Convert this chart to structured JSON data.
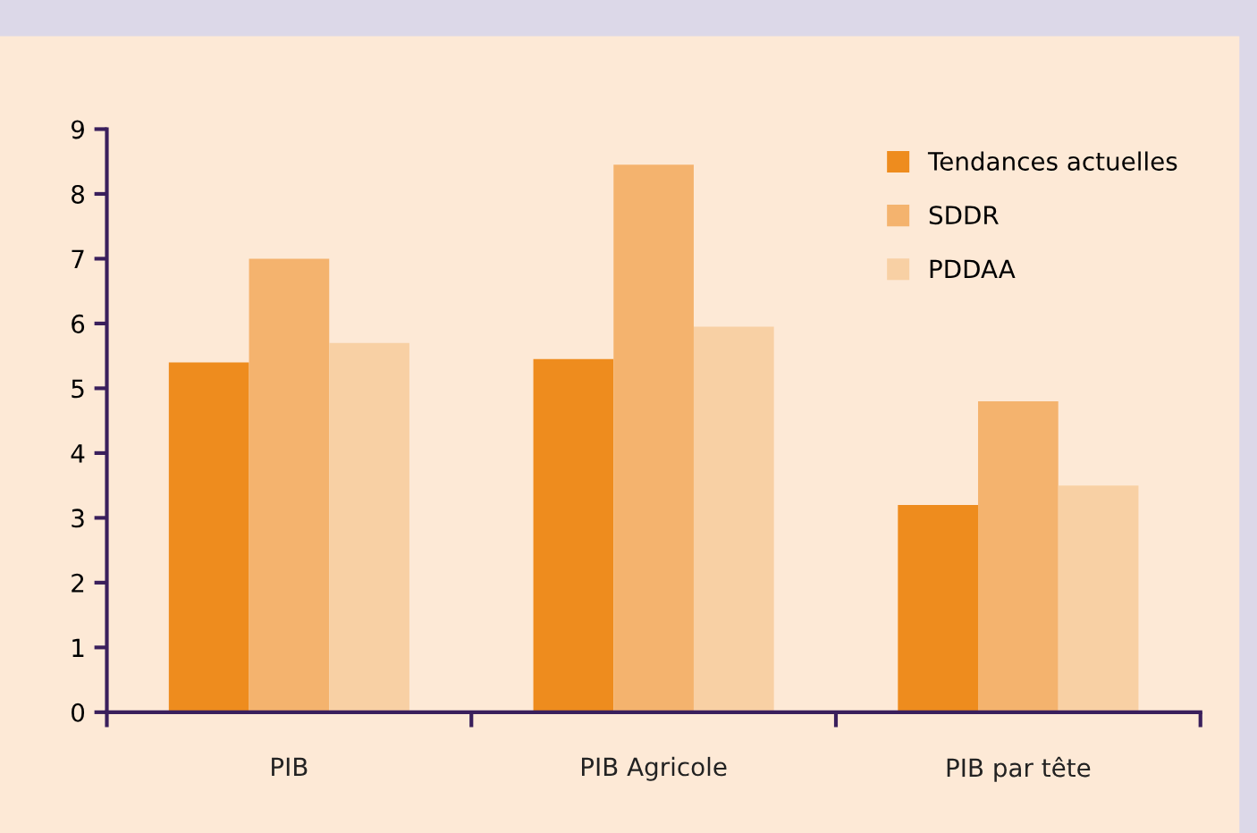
{
  "chart_data": {
    "type": "bar",
    "categories": [
      "PIB",
      "PIB Agricole",
      "PIB par tête"
    ],
    "series": [
      {
        "name": "Tendances actuelles",
        "color": "#ee8c1e",
        "values": [
          5.4,
          5.45,
          3.2
        ]
      },
      {
        "name": "SDDR",
        "color": "#f4b36e",
        "values": [
          7.0,
          8.45,
          4.8
        ]
      },
      {
        "name": "PDDAA",
        "color": "#f8d0a4",
        "values": [
          5.7,
          5.95,
          3.5
        ]
      }
    ],
    "ylim": [
      0,
      9
    ],
    "yticks": [
      0,
      1,
      2,
      3,
      4,
      5,
      6,
      7,
      8,
      9
    ],
    "grid": false,
    "legend": "top right"
  }
}
